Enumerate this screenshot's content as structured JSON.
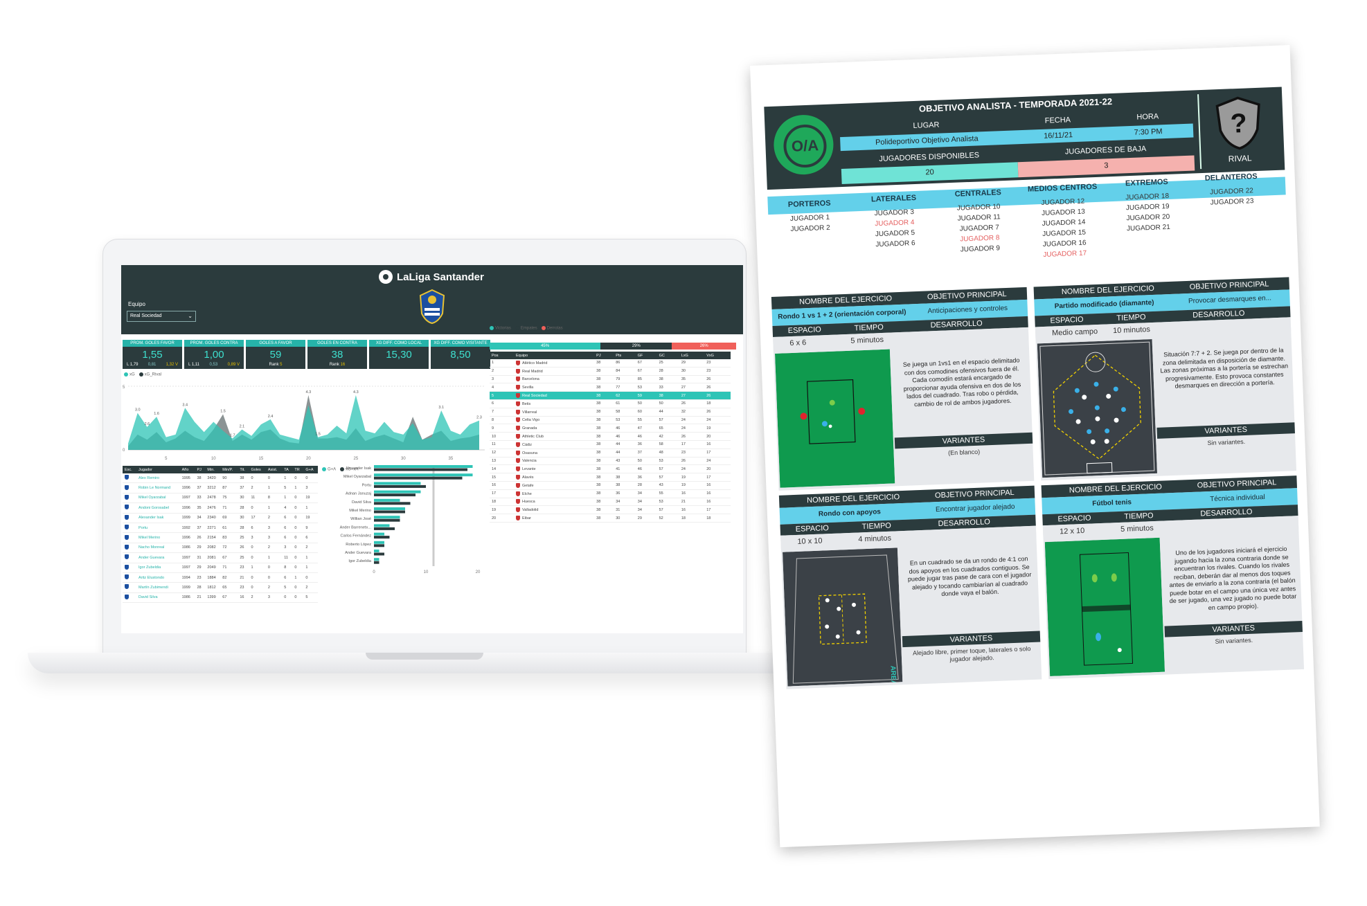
{
  "dashboard": {
    "brand": "LaLiga Santander",
    "team_label": "Equipo",
    "team_value": "Real Sociedad",
    "kpis": [
      {
        "title": "PROM. GOLES FAVOR",
        "value": "1,55",
        "left": "L 1,79",
        "mid": "0,81",
        "right": "1,32 V"
      },
      {
        "title": "PROM. GOLES CONTRA",
        "value": "1,00",
        "left": "L 1,11",
        "mid": "0,53",
        "right": "0,89 V"
      },
      {
        "title": "GOLES A FAVOR",
        "value": "59",
        "rank_label": "Rank",
        "rank": "5"
      },
      {
        "title": "GOLES EN CONTRA",
        "value": "38",
        "rank_label": "Rank",
        "rank": "16"
      },
      {
        "title": "XG DIFF. COMO LOCAL",
        "value": "15,30"
      },
      {
        "title": "XG DIFF. COMO VISITANTE",
        "value": "8,50"
      }
    ],
    "xg_legend": [
      "xG",
      "xG_Rival"
    ],
    "xg_chart": {
      "y_ticks": [
        "5",
        "0"
      ],
      "x_ticks": [
        "5",
        "10",
        "15",
        "20",
        "25",
        "30",
        "35"
      ],
      "labels": [
        "3.0",
        "2.6",
        "3.4",
        "2.4",
        "4.3",
        "4.3",
        "3.1",
        "2.3",
        "1.6",
        "1.5",
        "1.7",
        "2.1",
        "1.5"
      ],
      "xg": [
        0.5,
        2.9,
        1.8,
        2.6,
        1.0,
        1.2,
        3.3,
        2.2,
        1.4,
        2.2,
        1.5,
        0.9,
        1.6,
        1.1,
        2.0,
        2.4,
        1.2,
        1.0,
        0.8,
        3.5,
        1.0,
        1.2,
        1.9,
        1.3,
        4.3,
        1.5,
        1.3,
        2.2,
        1.4,
        1.2,
        2.1,
        0.8,
        1.0,
        3.1,
        1.5,
        1.2,
        2.0,
        2.3
      ],
      "xg_rival": [
        0.3,
        1.2,
        0.8,
        1.4,
        0.6,
        0.9,
        1.5,
        1.0,
        0.7,
        1.6,
        2.8,
        0.7,
        1.2,
        0.8,
        1.4,
        1.6,
        0.9,
        0.6,
        0.5,
        4.3,
        0.9,
        0.9,
        1.0,
        0.8,
        1.7,
        0.7,
        1.0,
        1.2,
        0.9,
        0.6,
        2.6,
        0.8,
        1.2,
        1.5,
        0.7,
        0.9,
        1.0,
        1.2
      ]
    },
    "player_table": {
      "headers": [
        "Esc.",
        "Jugador",
        "Año",
        "PJ",
        "Min.",
        "Min/P.",
        "Tit.",
        "Goles",
        "Asist.",
        "TA",
        "TR",
        "G+A"
      ],
      "rows": [
        [
          "Alex Remiro",
          "1995",
          "38",
          "3420",
          "90",
          "38",
          "0",
          "0",
          "1",
          "0",
          "0"
        ],
        [
          "Robin Le Normand",
          "1996",
          "37",
          "3212",
          "87",
          "37",
          "2",
          "1",
          "5",
          "1",
          "3"
        ],
        [
          "Mikel Oyarzabal",
          "1997",
          "33",
          "2478",
          "75",
          "30",
          "11",
          "8",
          "1",
          "0",
          "19"
        ],
        [
          "Andoni Gorosabel",
          "1996",
          "35",
          "2476",
          "71",
          "28",
          "0",
          "1",
          "4",
          "0",
          "1"
        ],
        [
          "Alexander Isak",
          "1999",
          "34",
          "2340",
          "69",
          "30",
          "17",
          "2",
          "6",
          "0",
          "19"
        ],
        [
          "Portu",
          "1992",
          "37",
          "2271",
          "61",
          "28",
          "6",
          "3",
          "6",
          "0",
          "9"
        ],
        [
          "Mikel Merino",
          "1996",
          "26",
          "2154",
          "83",
          "25",
          "3",
          "3",
          "6",
          "0",
          "6"
        ],
        [
          "Nacho Monreal",
          "1986",
          "29",
          "2082",
          "72",
          "26",
          "0",
          "2",
          "3",
          "0",
          "2"
        ],
        [
          "Ander Guevara",
          "1997",
          "31",
          "2081",
          "67",
          "25",
          "0",
          "1",
          "11",
          "0",
          "1"
        ],
        [
          "Igor Zubeldia",
          "1997",
          "29",
          "2049",
          "71",
          "23",
          "1",
          "0",
          "8",
          "0",
          "1"
        ],
        [
          "Aritz Elustondo",
          "1994",
          "23",
          "1884",
          "82",
          "21",
          "0",
          "0",
          "6",
          "1",
          "0"
        ],
        [
          "Martín Zubimendi",
          "1999",
          "28",
          "1812",
          "65",
          "23",
          "0",
          "2",
          "5",
          "0",
          "2"
        ],
        [
          "David Silva",
          "1986",
          "21",
          "1399",
          "67",
          "16",
          "2",
          "3",
          "0",
          "0",
          "5"
        ]
      ]
    },
    "bar_chart": {
      "legend": [
        "G+A",
        "xG+xA"
      ],
      "players": [
        "Alexander Isak",
        "Mikel Oyarzabal",
        "Portu",
        "Adnan Januzaj",
        "David Silva",
        "Mikel Merino",
        "Willian José",
        "Ander Barrenetx...",
        "Carlos Fernández",
        "Roberto López",
        "Ander Guevara",
        "Igor Zubeldia"
      ],
      "ga": [
        19,
        19,
        9,
        9,
        5,
        6,
        5,
        3,
        2,
        2,
        1,
        1
      ],
      "xgxa": [
        18,
        17,
        10,
        8,
        7,
        6,
        5,
        4,
        3,
        2,
        2,
        1
      ],
      "x_ticks": [
        "0",
        "10",
        "20"
      ]
    },
    "results_legend": [
      "Victorias",
      "Empates",
      "Derrotas"
    ],
    "results_split": [
      "45%",
      "29%",
      "26%"
    ],
    "league_table": {
      "headers": [
        "Pos",
        "Equipo",
        "PJ",
        "Pts",
        "GF",
        "GC",
        "LxG",
        "VxG"
      ],
      "rows": [
        [
          "1",
          "Atlético Madrid",
          "38",
          "86",
          "67",
          "25",
          "29",
          "23"
        ],
        [
          "2",
          "Real Madrid",
          "38",
          "84",
          "67",
          "28",
          "30",
          "23"
        ],
        [
          "3",
          "Barcelona",
          "38",
          "79",
          "85",
          "38",
          "35",
          "26"
        ],
        [
          "4",
          "Sevilla",
          "38",
          "77",
          "53",
          "33",
          "27",
          "26"
        ],
        [
          "5",
          "Real Sociedad",
          "38",
          "62",
          "59",
          "38",
          "27",
          "26"
        ],
        [
          "6",
          "Betis",
          "38",
          "61",
          "50",
          "50",
          "26",
          "18"
        ],
        [
          "7",
          "Villarreal",
          "38",
          "58",
          "60",
          "44",
          "32",
          "26"
        ],
        [
          "8",
          "Celta Vigo",
          "38",
          "53",
          "55",
          "57",
          "24",
          "24"
        ],
        [
          "9",
          "Granada",
          "38",
          "46",
          "47",
          "65",
          "24",
          "19"
        ],
        [
          "10",
          "Athletic Club",
          "38",
          "46",
          "46",
          "42",
          "26",
          "20"
        ],
        [
          "11",
          "Cádiz",
          "38",
          "44",
          "36",
          "58",
          "17",
          "16"
        ],
        [
          "12",
          "Osasuna",
          "38",
          "44",
          "37",
          "48",
          "23",
          "17"
        ],
        [
          "13",
          "Valencia",
          "38",
          "43",
          "50",
          "53",
          "26",
          "24"
        ],
        [
          "14",
          "Levante",
          "38",
          "41",
          "46",
          "57",
          "24",
          "20"
        ],
        [
          "15",
          "Alavés",
          "38",
          "38",
          "36",
          "57",
          "19",
          "17"
        ],
        [
          "16",
          "Getafe",
          "38",
          "38",
          "28",
          "43",
          "19",
          "16"
        ],
        [
          "17",
          "Elche",
          "38",
          "36",
          "34",
          "55",
          "16",
          "16"
        ],
        [
          "18",
          "Huesca",
          "38",
          "34",
          "34",
          "53",
          "21",
          "16"
        ],
        [
          "19",
          "Valladolid",
          "38",
          "31",
          "34",
          "57",
          "16",
          "17"
        ],
        [
          "20",
          "Eibar",
          "38",
          "30",
          "29",
          "52",
          "18",
          "18"
        ]
      ]
    }
  },
  "report": {
    "title": "OBJETIVO ANALISTA - TEMPORADA 2021-22",
    "logo_text": "O/A",
    "fecha_label": "FECHA",
    "hora_label": "HORA",
    "lugar_label": "LUGAR",
    "lugar": "Polideportivo Objetivo Analista",
    "fecha": "16/11/21",
    "hora": "7:30 PM",
    "disponibles_label": "JUGADORES DISPONIBLES",
    "baja_label": "JUGADORES DE BAJA",
    "disponibles": "20",
    "baja": "3",
    "rival_label": "RIVAL",
    "rival_mark": "?",
    "positions": [
      {
        "title": "PORTEROS",
        "players": [
          {
            "name": "JUGADOR 1",
            "out": false
          },
          {
            "name": "JUGADOR 2",
            "out": false
          }
        ]
      },
      {
        "title": "LATERALES",
        "players": [
          {
            "name": "JUGADOR 3",
            "out": false
          },
          {
            "name": "JUGADOR 4",
            "out": true
          },
          {
            "name": "JUGADOR 5",
            "out": false
          },
          {
            "name": "JUGADOR 6",
            "out": false
          }
        ]
      },
      {
        "title": "CENTRALES",
        "players": [
          {
            "name": "JUGADOR 10",
            "out": false
          },
          {
            "name": "JUGADOR 11",
            "out": false
          },
          {
            "name": "JUGADOR 7",
            "out": false
          },
          {
            "name": "JUGADOR 8",
            "out": true
          },
          {
            "name": "JUGADOR 9",
            "out": false
          }
        ]
      },
      {
        "title": "MEDIOS CENTROS",
        "players": [
          {
            "name": "JUGADOR 12",
            "out": false
          },
          {
            "name": "JUGADOR 13",
            "out": false
          },
          {
            "name": "JUGADOR 14",
            "out": false
          },
          {
            "name": "JUGADOR 15",
            "out": false
          },
          {
            "name": "JUGADOR 16",
            "out": false
          },
          {
            "name": "JUGADOR 17",
            "out": true
          }
        ]
      },
      {
        "title": "EXTREMOS",
        "players": [
          {
            "name": "JUGADOR 18",
            "out": false
          },
          {
            "name": "JUGADOR 19",
            "out": false
          },
          {
            "name": "JUGADOR 20",
            "out": false
          },
          {
            "name": "JUGADOR 21",
            "out": false
          }
        ]
      },
      {
        "title": "DELANTEROS",
        "players": [
          {
            "name": "JUGADOR 22",
            "out": false
          },
          {
            "name": "JUGADOR 23",
            "out": false
          }
        ]
      }
    ],
    "exercise_labels": {
      "name": "NOMBRE DEL EJERCICIO",
      "objective": "OBJETIVO PRINCIPAL",
      "space": "ESPACIO",
      "time": "TIEMPO",
      "development": "DESARROLLO",
      "variants": "VARIANTES"
    },
    "exercises": [
      {
        "name": "Rondo 1 vs 1 + 2 (orientación corporal)",
        "objective": "Anticipaciones y controles",
        "space": "6 x 6",
        "time": "5 minutos",
        "description": "Se juega un 1vs1 en el espacio delimitado con dos comodines ofensivos fuera de él. Cada comodín estará encargado de proporcionar ayuda ofensiva en dos de los lados del cuadrado. Tras robo o pérdida, cambio de rol de ambos jugadores.",
        "variants": "(En blanco)"
      },
      {
        "name": "Partido modificado (diamante)",
        "objective": "Provocar desmarques en...",
        "space": "Medio campo",
        "time": "10 minutos",
        "description": "Situación 7:7 + 2. Se juega por dentro de la zona delimitada en disposición de diamante. Las zonas próximas a la portería se estrechan progresivamente. Esto provoca constantes desmarques en dirección a portería.",
        "variants": "Sin variantes."
      },
      {
        "name": "Rondo con apoyos",
        "objective": "Encontrar jugador alejado",
        "space": "10 x 10",
        "time": "4 minutos",
        "description": "En un cuadrado se da un rondo de 4:1 con dos apoyos en los cuadrados contiguos. Se puede jugar tras pase de cara con el jugador alejado y tocando cambiarían al cuadrado donde vaya el balón.",
        "variants": "Alejado libre, primer toque, laterales o solo jugador alejado."
      },
      {
        "name": "Fútbol tenis",
        "objective": "Técnica individual",
        "space": "12 x 10",
        "time": "5 minutos",
        "description": "Uno de los jugadores iniciará el ejercicio jugando hacia la zona contraria donde se encuentran los rivales. Cuando los rivales reciban, deberán dar al menos dos toques antes de enviarlo a la zona contraria (el balón puede botar en el campo una única vez antes de ser jugado, una vez jugado no puede botar en campo propio).",
        "variants": "Sin variantes."
      }
    ],
    "watermark": "AREA TACTICA",
    "colors": {
      "dark": "#2b3b3d",
      "cyan": "#63d0ea",
      "mint": "#6fe3d6",
      "pink": "#f5b1ae",
      "teal": "#26b3a9",
      "green": "#1fa85a",
      "red_text": "#e45e5e"
    }
  }
}
